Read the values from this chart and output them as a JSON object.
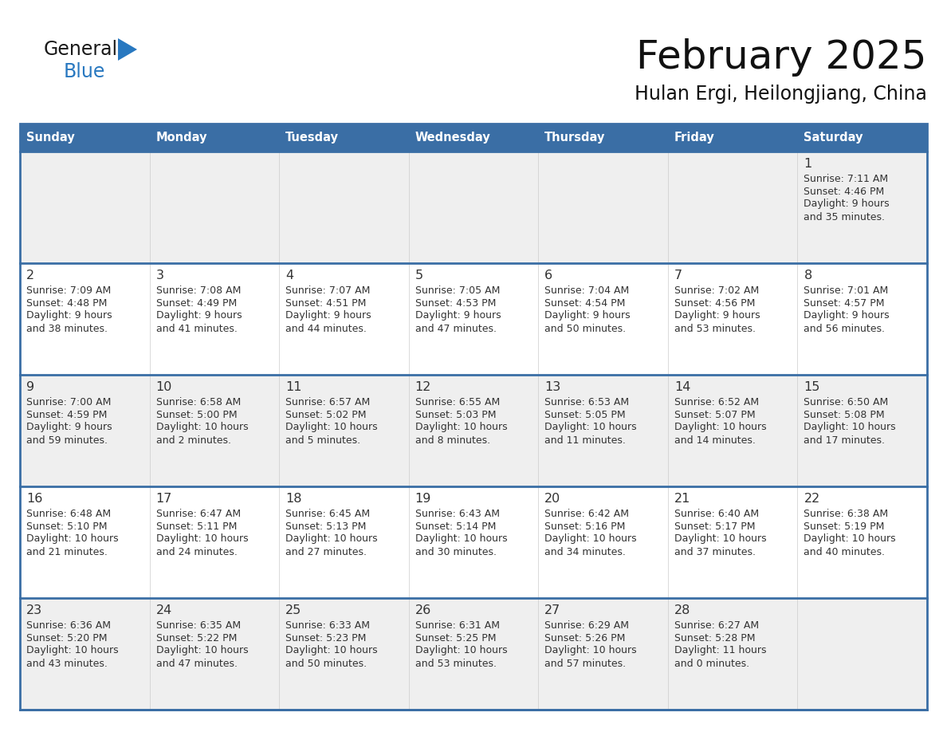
{
  "title": "February 2025",
  "subtitle": "Hulan Ergi, Heilongjiang, China",
  "days_of_week": [
    "Sunday",
    "Monday",
    "Tuesday",
    "Wednesday",
    "Thursday",
    "Friday",
    "Saturday"
  ],
  "header_bg": "#3a6ea5",
  "header_text": "#ffffff",
  "row_bg_odd": "#efefef",
  "row_bg_even": "#ffffff",
  "cell_border_color": "#3a6ea5",
  "day_number_color": "#333333",
  "cell_text_color": "#333333",
  "logo_general_color": "#1a1a1a",
  "logo_blue_color": "#2878c0",
  "calendar_data": {
    "1": {
      "sunrise": "7:11 AM",
      "sunset": "4:46 PM",
      "daylight_h": "9 hours",
      "daylight_m": "35 minutes."
    },
    "2": {
      "sunrise": "7:09 AM",
      "sunset": "4:48 PM",
      "daylight_h": "9 hours",
      "daylight_m": "38 minutes."
    },
    "3": {
      "sunrise": "7:08 AM",
      "sunset": "4:49 PM",
      "daylight_h": "9 hours",
      "daylight_m": "41 minutes."
    },
    "4": {
      "sunrise": "7:07 AM",
      "sunset": "4:51 PM",
      "daylight_h": "9 hours",
      "daylight_m": "44 minutes."
    },
    "5": {
      "sunrise": "7:05 AM",
      "sunset": "4:53 PM",
      "daylight_h": "9 hours",
      "daylight_m": "47 minutes."
    },
    "6": {
      "sunrise": "7:04 AM",
      "sunset": "4:54 PM",
      "daylight_h": "9 hours",
      "daylight_m": "50 minutes."
    },
    "7": {
      "sunrise": "7:02 AM",
      "sunset": "4:56 PM",
      "daylight_h": "9 hours",
      "daylight_m": "53 minutes."
    },
    "8": {
      "sunrise": "7:01 AM",
      "sunset": "4:57 PM",
      "daylight_h": "9 hours",
      "daylight_m": "56 minutes."
    },
    "9": {
      "sunrise": "7:00 AM",
      "sunset": "4:59 PM",
      "daylight_h": "9 hours",
      "daylight_m": "59 minutes."
    },
    "10": {
      "sunrise": "6:58 AM",
      "sunset": "5:00 PM",
      "daylight_h": "10 hours",
      "daylight_m": "2 minutes."
    },
    "11": {
      "sunrise": "6:57 AM",
      "sunset": "5:02 PM",
      "daylight_h": "10 hours",
      "daylight_m": "5 minutes."
    },
    "12": {
      "sunrise": "6:55 AM",
      "sunset": "5:03 PM",
      "daylight_h": "10 hours",
      "daylight_m": "8 minutes."
    },
    "13": {
      "sunrise": "6:53 AM",
      "sunset": "5:05 PM",
      "daylight_h": "10 hours",
      "daylight_m": "11 minutes."
    },
    "14": {
      "sunrise": "6:52 AM",
      "sunset": "5:07 PM",
      "daylight_h": "10 hours",
      "daylight_m": "14 minutes."
    },
    "15": {
      "sunrise": "6:50 AM",
      "sunset": "5:08 PM",
      "daylight_h": "10 hours",
      "daylight_m": "17 minutes."
    },
    "16": {
      "sunrise": "6:48 AM",
      "sunset": "5:10 PM",
      "daylight_h": "10 hours",
      "daylight_m": "21 minutes."
    },
    "17": {
      "sunrise": "6:47 AM",
      "sunset": "5:11 PM",
      "daylight_h": "10 hours",
      "daylight_m": "24 minutes."
    },
    "18": {
      "sunrise": "6:45 AM",
      "sunset": "5:13 PM",
      "daylight_h": "10 hours",
      "daylight_m": "27 minutes."
    },
    "19": {
      "sunrise": "6:43 AM",
      "sunset": "5:14 PM",
      "daylight_h": "10 hours",
      "daylight_m": "30 minutes."
    },
    "20": {
      "sunrise": "6:42 AM",
      "sunset": "5:16 PM",
      "daylight_h": "10 hours",
      "daylight_m": "34 minutes."
    },
    "21": {
      "sunrise": "6:40 AM",
      "sunset": "5:17 PM",
      "daylight_h": "10 hours",
      "daylight_m": "37 minutes."
    },
    "22": {
      "sunrise": "6:38 AM",
      "sunset": "5:19 PM",
      "daylight_h": "10 hours",
      "daylight_m": "40 minutes."
    },
    "23": {
      "sunrise": "6:36 AM",
      "sunset": "5:20 PM",
      "daylight_h": "10 hours",
      "daylight_m": "43 minutes."
    },
    "24": {
      "sunrise": "6:35 AM",
      "sunset": "5:22 PM",
      "daylight_h": "10 hours",
      "daylight_m": "47 minutes."
    },
    "25": {
      "sunrise": "6:33 AM",
      "sunset": "5:23 PM",
      "daylight_h": "10 hours",
      "daylight_m": "50 minutes."
    },
    "26": {
      "sunrise": "6:31 AM",
      "sunset": "5:25 PM",
      "daylight_h": "10 hours",
      "daylight_m": "53 minutes."
    },
    "27": {
      "sunrise": "6:29 AM",
      "sunset": "5:26 PM",
      "daylight_h": "10 hours",
      "daylight_m": "57 minutes."
    },
    "28": {
      "sunrise": "6:27 AM",
      "sunset": "5:28 PM",
      "daylight_h": "11 hours",
      "daylight_m": "0 minutes."
    }
  },
  "weeks": [
    [
      null,
      null,
      null,
      null,
      null,
      null,
      1
    ],
    [
      2,
      3,
      4,
      5,
      6,
      7,
      8
    ],
    [
      9,
      10,
      11,
      12,
      13,
      14,
      15
    ],
    [
      16,
      17,
      18,
      19,
      20,
      21,
      22
    ],
    [
      23,
      24,
      25,
      26,
      27,
      28,
      null
    ]
  ]
}
